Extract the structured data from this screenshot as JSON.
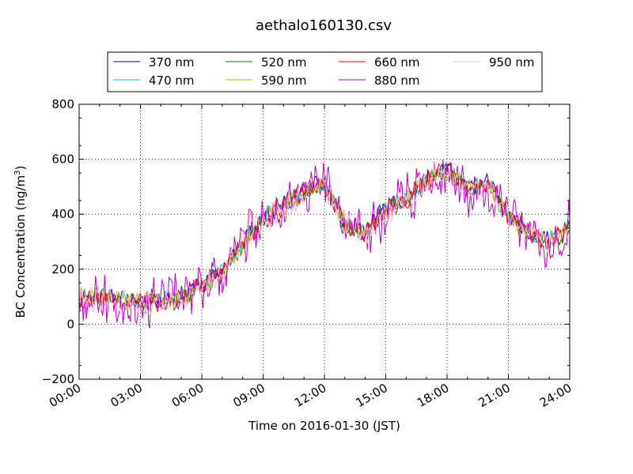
{
  "chart_data": {
    "type": "line",
    "title": "aethalo160130.csv",
    "xlabel": "Time on 2016-01-30 (JST)",
    "ylabel": "BC Concentration (ng/m",
    "ylabel_superscript": "3",
    "ylabel_suffix": ")",
    "xlim": [
      "00:00",
      "24:00"
    ],
    "ylim": [
      -200,
      800
    ],
    "x_ticks": [
      "00:00",
      "03:00",
      "06:00",
      "09:00",
      "12:00",
      "15:00",
      "18:00",
      "21:00",
      "24:00"
    ],
    "y_ticks": [
      -200,
      0,
      200,
      400,
      600,
      800
    ],
    "grid": true,
    "legend_position": "top",
    "series_style": "noisy minute-resolution traces",
    "trend_hours": [
      0,
      1,
      2,
      3,
      4,
      5,
      6,
      7,
      8,
      9,
      10,
      11,
      12,
      13,
      14,
      15,
      16,
      17,
      18,
      19,
      20,
      21,
      22,
      23,
      24
    ],
    "trend_values": [
      100,
      100,
      90,
      85,
      80,
      95,
      140,
      190,
      290,
      380,
      430,
      480,
      510,
      360,
      330,
      420,
      450,
      530,
      560,
      490,
      510,
      390,
      330,
      300,
      350
    ],
    "series": [
      {
        "name": "370 nm",
        "color": "#0000cc",
        "offset": 8,
        "amp": 35,
        "seed": 11
      },
      {
        "name": "470 nm",
        "color": "#00bfbf",
        "offset": 4,
        "amp": 38,
        "seed": 23
      },
      {
        "name": "520 nm",
        "color": "#008000",
        "offset": -4,
        "amp": 40,
        "seed": 37
      },
      {
        "name": "590 nm",
        "color": "#c8b400",
        "offset": 0,
        "amp": 40,
        "seed": 41
      },
      {
        "name": "660 nm",
        "color": "#ff0000",
        "offset": 2,
        "amp": 45,
        "seed": 53
      },
      {
        "name": "880 nm",
        "color": "#bf00bf",
        "offset": 0,
        "amp": 110,
        "seed": 67
      },
      {
        "name": "950 nm",
        "color": "#ffc0cb",
        "offset": -2,
        "amp": 60,
        "seed": 79
      }
    ]
  }
}
